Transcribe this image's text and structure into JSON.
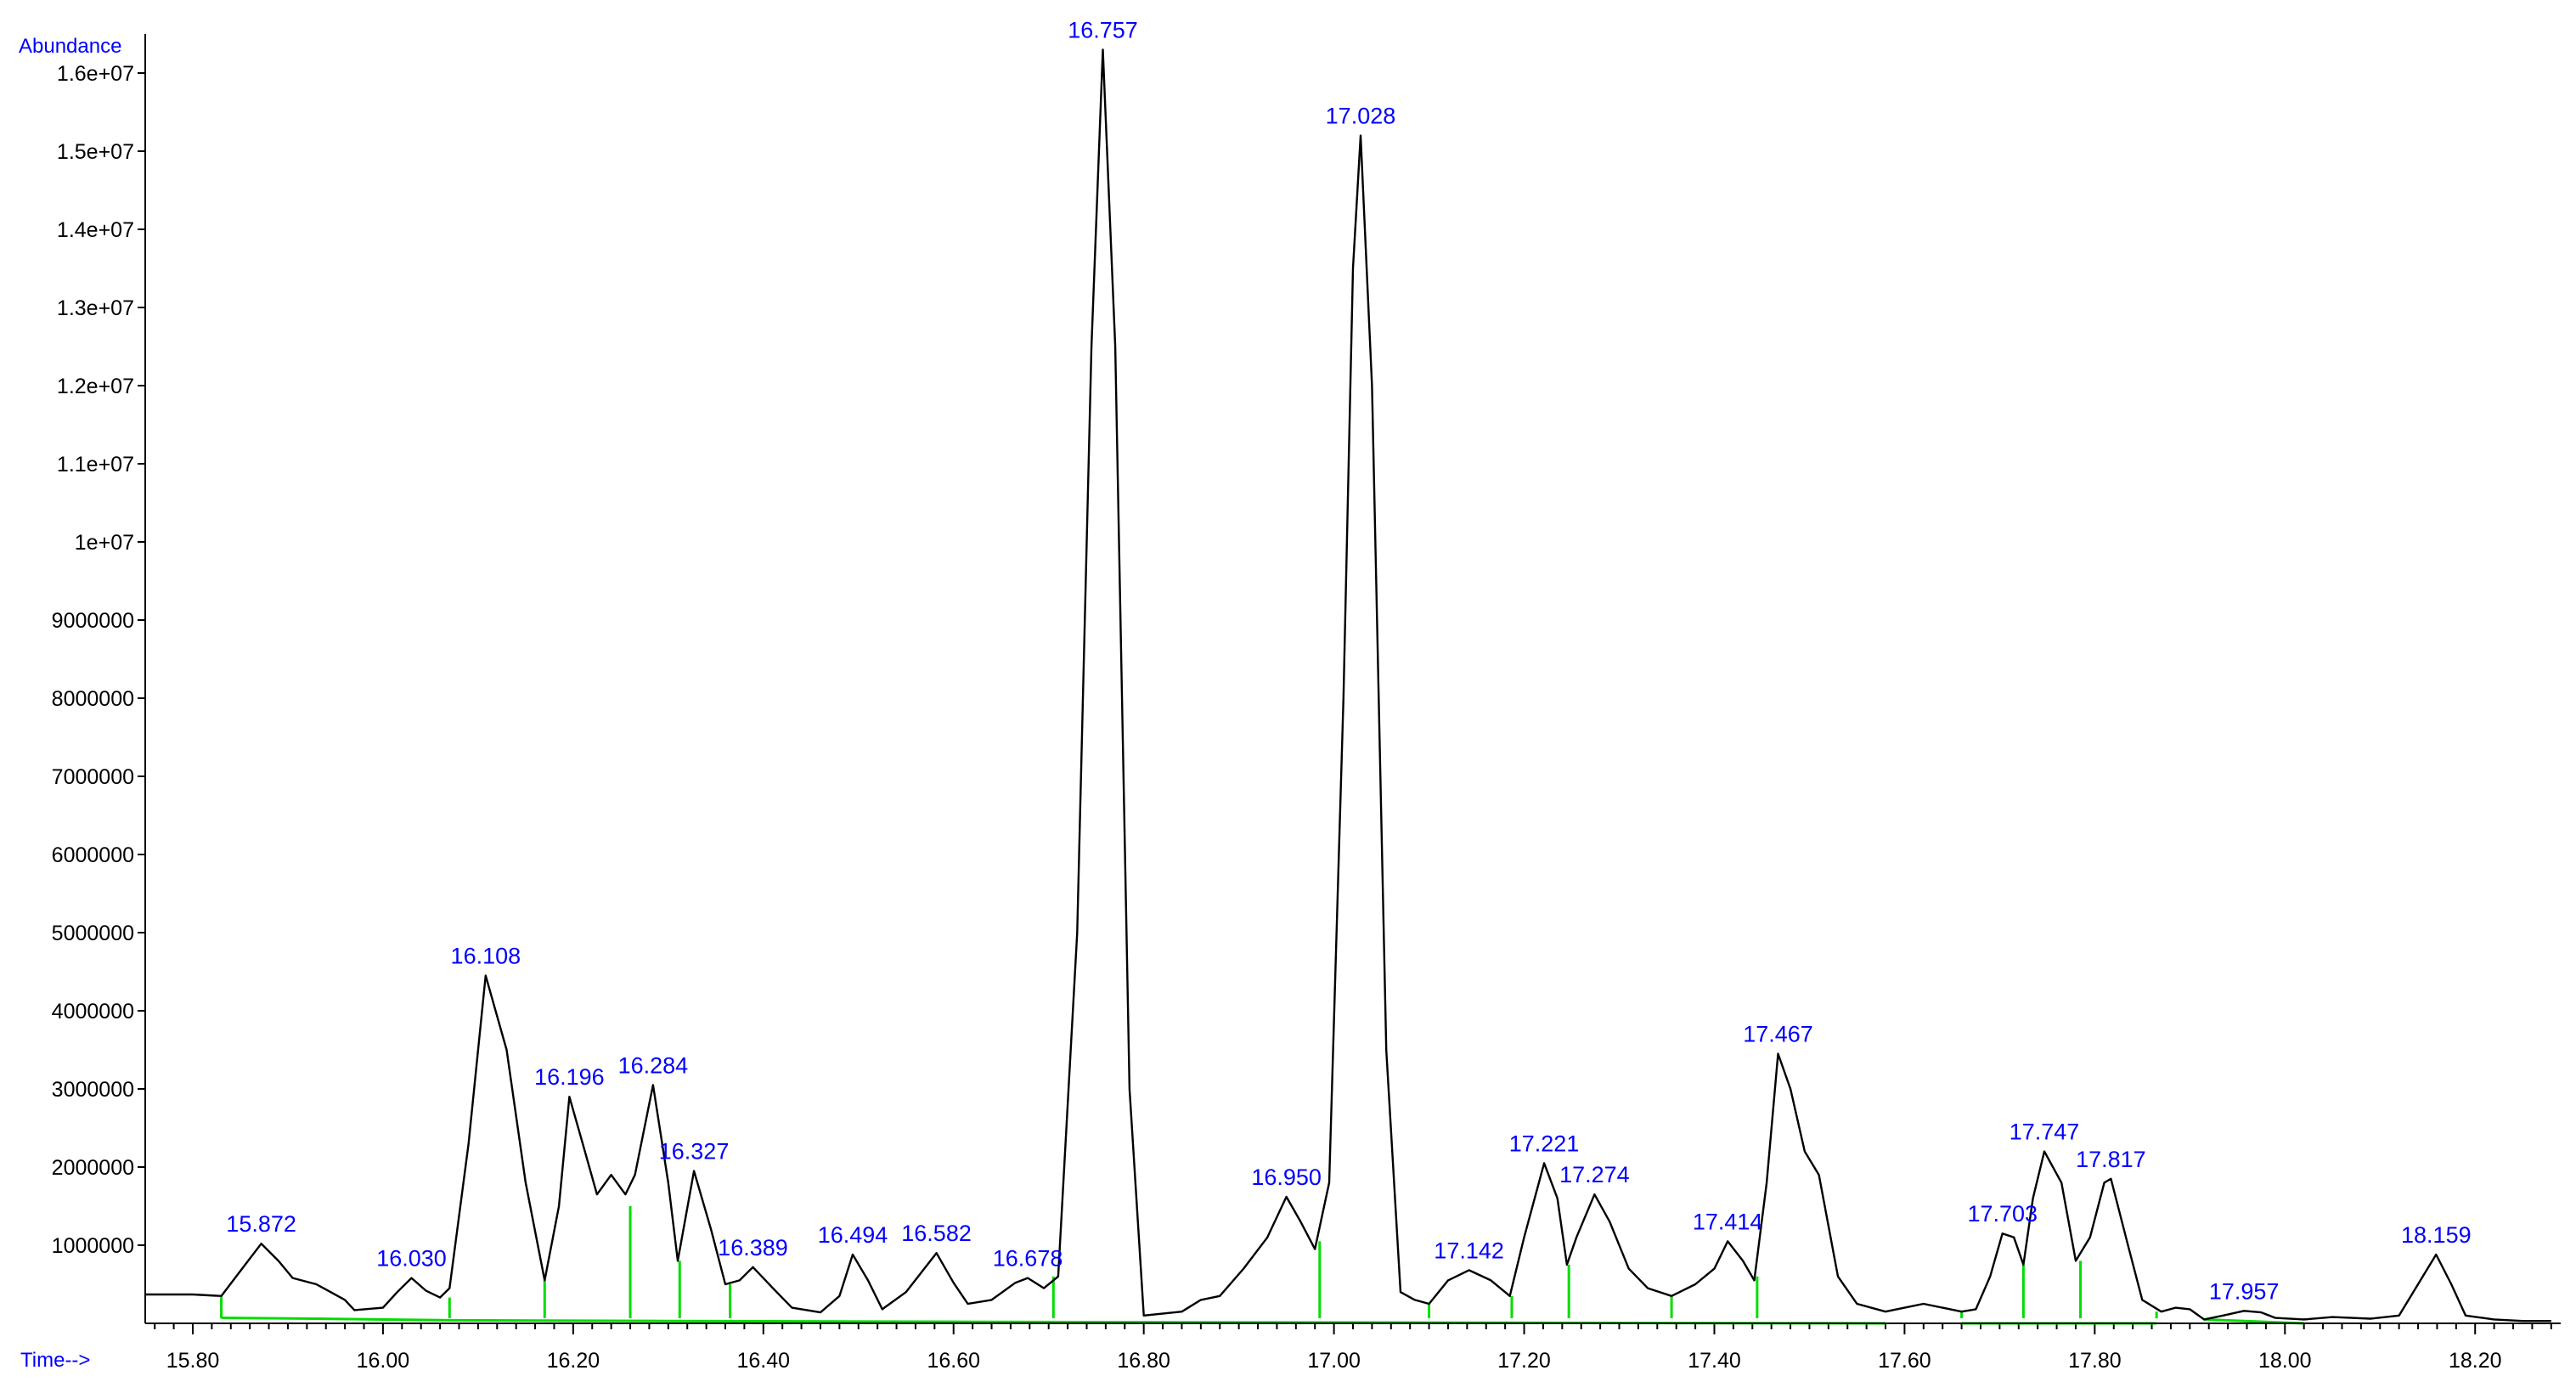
{
  "chart_data": {
    "type": "line",
    "title": "",
    "ylabel": "Abundance",
    "xlabel": "Time-->",
    "xlim": [
      15.75,
      18.29
    ],
    "ylim": [
      0,
      16500000
    ],
    "x_ticks": [
      {
        "value": 15.8,
        "label": "15.80"
      },
      {
        "value": 16.0,
        "label": "16.00"
      },
      {
        "value": 16.2,
        "label": "16.20"
      },
      {
        "value": 16.4,
        "label": "16.40"
      },
      {
        "value": 16.6,
        "label": "16.60"
      },
      {
        "value": 16.8,
        "label": "16.80"
      },
      {
        "value": 17.0,
        "label": "17.00"
      },
      {
        "value": 17.2,
        "label": "17.20"
      },
      {
        "value": 17.4,
        "label": "17.40"
      },
      {
        "value": 17.6,
        "label": "17.60"
      },
      {
        "value": 17.8,
        "label": "17.80"
      },
      {
        "value": 18.0,
        "label": "18.00"
      },
      {
        "value": 18.2,
        "label": "18.20"
      }
    ],
    "y_ticks": [
      {
        "value": 1000000,
        "label": "1000000"
      },
      {
        "value": 2000000,
        "label": "2000000"
      },
      {
        "value": 3000000,
        "label": "3000000"
      },
      {
        "value": 4000000,
        "label": "4000000"
      },
      {
        "value": 5000000,
        "label": "5000000"
      },
      {
        "value": 6000000,
        "label": "6000000"
      },
      {
        "value": 7000000,
        "label": "7000000"
      },
      {
        "value": 8000000,
        "label": "8000000"
      },
      {
        "value": 9000000,
        "label": "9000000"
      },
      {
        "value": 10000000,
        "label": "1e+07"
      },
      {
        "value": 11000000,
        "label": "1.1e+07"
      },
      {
        "value": 12000000,
        "label": "1.2e+07"
      },
      {
        "value": 13000000,
        "label": "1.3e+07"
      },
      {
        "value": 14000000,
        "label": "1.4e+07"
      },
      {
        "value": 15000000,
        "label": "1.5e+07"
      },
      {
        "value": 16000000,
        "label": "1.6e+07"
      }
    ],
    "series": [
      {
        "points": [
          [
            15.75,
            370000
          ],
          [
            15.8,
            370000
          ],
          [
            15.83,
            350000
          ],
          [
            15.855,
            750000
          ],
          [
            15.872,
            1020000
          ],
          [
            15.89,
            800000
          ],
          [
            15.905,
            580000
          ],
          [
            15.93,
            500000
          ],
          [
            15.96,
            300000
          ],
          [
            15.97,
            170000
          ],
          [
            16.0,
            200000
          ],
          [
            16.015,
            400000
          ],
          [
            16.03,
            580000
          ],
          [
            16.045,
            420000
          ],
          [
            16.06,
            330000
          ],
          [
            16.07,
            450000
          ],
          [
            16.09,
            2300000
          ],
          [
            16.108,
            4450000
          ],
          [
            16.13,
            3500000
          ],
          [
            16.15,
            1800000
          ],
          [
            16.17,
            550000
          ],
          [
            16.185,
            1500000
          ],
          [
            16.196,
            2900000
          ],
          [
            16.21,
            2300000
          ],
          [
            16.225,
            1650000
          ],
          [
            16.24,
            1900000
          ],
          [
            16.255,
            1650000
          ],
          [
            16.265,
            1900000
          ],
          [
            16.284,
            3050000
          ],
          [
            16.3,
            1800000
          ],
          [
            16.31,
            800000
          ],
          [
            16.327,
            1950000
          ],
          [
            16.345,
            1200000
          ],
          [
            16.36,
            500000
          ],
          [
            16.375,
            550000
          ],
          [
            16.389,
            720000
          ],
          [
            16.41,
            450000
          ],
          [
            16.43,
            200000
          ],
          [
            16.46,
            140000
          ],
          [
            16.48,
            350000
          ],
          [
            16.494,
            880000
          ],
          [
            16.51,
            550000
          ],
          [
            16.525,
            180000
          ],
          [
            16.55,
            400000
          ],
          [
            16.582,
            900000
          ],
          [
            16.6,
            520000
          ],
          [
            16.615,
            250000
          ],
          [
            16.64,
            300000
          ],
          [
            16.665,
            520000
          ],
          [
            16.678,
            580000
          ],
          [
            16.695,
            450000
          ],
          [
            16.71,
            600000
          ],
          [
            16.73,
            5000000
          ],
          [
            16.745,
            12500000
          ],
          [
            16.757,
            16300000
          ],
          [
            16.77,
            12500000
          ],
          [
            16.785,
            3000000
          ],
          [
            16.8,
            100000
          ],
          [
            16.84,
            150000
          ],
          [
            16.86,
            300000
          ],
          [
            16.88,
            350000
          ],
          [
            16.905,
            700000
          ],
          [
            16.93,
            1100000
          ],
          [
            16.95,
            1620000
          ],
          [
            16.965,
            1300000
          ],
          [
            16.98,
            950000
          ],
          [
            16.995,
            1800000
          ],
          [
            17.01,
            8000000
          ],
          [
            17.02,
            13500000
          ],
          [
            17.028,
            15200000
          ],
          [
            17.04,
            12000000
          ],
          [
            17.055,
            3500000
          ],
          [
            17.07,
            400000
          ],
          [
            17.085,
            300000
          ],
          [
            17.1,
            250000
          ],
          [
            17.12,
            550000
          ],
          [
            17.142,
            680000
          ],
          [
            17.165,
            550000
          ],
          [
            17.185,
            350000
          ],
          [
            17.2,
            1100000
          ],
          [
            17.221,
            2050000
          ],
          [
            17.235,
            1600000
          ],
          [
            17.245,
            750000
          ],
          [
            17.255,
            1100000
          ],
          [
            17.274,
            1650000
          ],
          [
            17.29,
            1300000
          ],
          [
            17.31,
            700000
          ],
          [
            17.33,
            450000
          ],
          [
            17.355,
            350000
          ],
          [
            17.38,
            500000
          ],
          [
            17.4,
            700000
          ],
          [
            17.414,
            1050000
          ],
          [
            17.43,
            800000
          ],
          [
            17.442,
            550000
          ],
          [
            17.455,
            1800000
          ],
          [
            17.467,
            3450000
          ],
          [
            17.48,
            3000000
          ],
          [
            17.495,
            2200000
          ],
          [
            17.51,
            1900000
          ],
          [
            17.53,
            600000
          ],
          [
            17.55,
            250000
          ],
          [
            17.58,
            150000
          ],
          [
            17.6,
            200000
          ],
          [
            17.62,
            250000
          ],
          [
            17.64,
            200000
          ],
          [
            17.66,
            150000
          ],
          [
            17.675,
            180000
          ],
          [
            17.69,
            600000
          ],
          [
            17.703,
            1150000
          ],
          [
            17.715,
            1100000
          ],
          [
            17.725,
            750000
          ],
          [
            17.735,
            1600000
          ],
          [
            17.747,
            2200000
          ],
          [
            17.765,
            1800000
          ],
          [
            17.78,
            800000
          ],
          [
            17.795,
            1100000
          ],
          [
            17.81,
            1800000
          ],
          [
            17.817,
            1850000
          ],
          [
            17.835,
            1000000
          ],
          [
            17.85,
            300000
          ],
          [
            17.87,
            150000
          ],
          [
            17.885,
            200000
          ],
          [
            17.9,
            180000
          ],
          [
            17.915,
            50000
          ],
          [
            17.935,
            100000
          ],
          [
            17.957,
            160000
          ],
          [
            17.975,
            140000
          ],
          [
            17.99,
            70000
          ],
          [
            18.02,
            50000
          ],
          [
            18.05,
            80000
          ],
          [
            18.09,
            60000
          ],
          [
            18.12,
            100000
          ],
          [
            18.14,
            500000
          ],
          [
            18.159,
            880000
          ],
          [
            18.175,
            500000
          ],
          [
            18.19,
            100000
          ],
          [
            18.22,
            50000
          ],
          [
            18.25,
            30000
          ],
          [
            18.28,
            30000
          ]
        ]
      }
    ],
    "peak_labels": [
      {
        "x": 15.872,
        "y": 1020000,
        "label": "15.872"
      },
      {
        "x": 16.03,
        "y": 580000,
        "label": "16.030"
      },
      {
        "x": 16.108,
        "y": 4450000,
        "label": "16.108"
      },
      {
        "x": 16.196,
        "y": 2900000,
        "label": "16.196"
      },
      {
        "x": 16.284,
        "y": 3050000,
        "label": "16.284"
      },
      {
        "x": 16.327,
        "y": 1950000,
        "label": "16.327"
      },
      {
        "x": 16.389,
        "y": 720000,
        "label": "16.389"
      },
      {
        "x": 16.494,
        "y": 880000,
        "label": "16.494"
      },
      {
        "x": 16.582,
        "y": 900000,
        "label": "16.582"
      },
      {
        "x": 16.678,
        "y": 580000,
        "label": "16.678"
      },
      {
        "x": 16.757,
        "y": 16300000,
        "label": "16.757"
      },
      {
        "x": 16.95,
        "y": 1620000,
        "label": "16.950"
      },
      {
        "x": 17.028,
        "y": 15200000,
        "label": "17.028"
      },
      {
        "x": 17.142,
        "y": 680000,
        "label": "17.142"
      },
      {
        "x": 17.221,
        "y": 2050000,
        "label": "17.221"
      },
      {
        "x": 17.274,
        "y": 1650000,
        "label": "17.274"
      },
      {
        "x": 17.414,
        "y": 1050000,
        "label": "17.414"
      },
      {
        "x": 17.467,
        "y": 3450000,
        "label": "17.467"
      },
      {
        "x": 17.703,
        "y": 1150000,
        "label": "17.703"
      },
      {
        "x": 17.747,
        "y": 2200000,
        "label": "17.747"
      },
      {
        "x": 17.817,
        "y": 1850000,
        "label": "17.817"
      },
      {
        "x": 17.957,
        "y": 160000,
        "label": "17.957"
      },
      {
        "x": 18.159,
        "y": 880000,
        "label": "18.159"
      }
    ],
    "integration_baseline": [
      [
        15.83,
        70000
      ],
      [
        15.93,
        60000
      ],
      [
        16.07,
        40000
      ],
      [
        16.3,
        30000
      ],
      [
        16.6,
        20000
      ],
      [
        16.8,
        15000
      ],
      [
        17.1,
        10000
      ],
      [
        17.3,
        5000
      ],
      [
        17.58,
        0
      ]
    ],
    "integration_baseline_2": [
      [
        17.66,
        0
      ],
      [
        17.865,
        0
      ]
    ],
    "integration_baseline_3": [
      [
        17.915,
        50000
      ],
      [
        18.02,
        0
      ]
    ],
    "integration_markers": [
      {
        "x": 15.83,
        "y": 350000
      },
      {
        "x": 16.07,
        "y": 330000
      },
      {
        "x": 16.17,
        "y": 550000
      },
      {
        "x": 16.26,
        "y": 1500000
      },
      {
        "x": 16.312,
        "y": 800000
      },
      {
        "x": 16.365,
        "y": 500000
      },
      {
        "x": 16.705,
        "y": 600000
      },
      {
        "x": 16.985,
        "y": 1050000
      },
      {
        "x": 17.1,
        "y": 250000
      },
      {
        "x": 17.187,
        "y": 350000
      },
      {
        "x": 17.247,
        "y": 750000
      },
      {
        "x": 17.355,
        "y": 350000
      },
      {
        "x": 17.445,
        "y": 600000
      },
      {
        "x": 17.66,
        "y": 150000
      },
      {
        "x": 17.725,
        "y": 750000
      },
      {
        "x": 17.785,
        "y": 800000
      },
      {
        "x": 17.865,
        "y": 150000
      },
      {
        "x": 17.915,
        "y": 50000
      },
      {
        "x": 18.02,
        "y": 50000
      }
    ],
    "grid": false,
    "colors": {
      "trace": "#000000",
      "peak_label": "#0000ff",
      "axis_title": "#0000ff",
      "integration": "#00dd00",
      "axis": "#000000",
      "background": "#ffffff"
    }
  }
}
